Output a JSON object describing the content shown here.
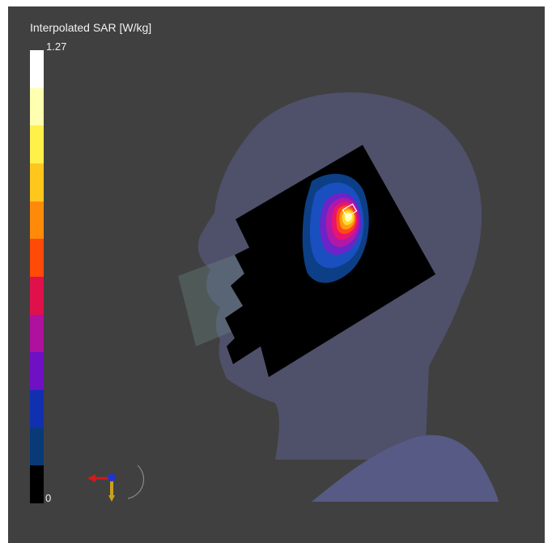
{
  "legend": {
    "title": "Interpolated SAR [W/kg]",
    "max_label": "1.27",
    "min_label": "0",
    "colors": [
      "#ffffff",
      "#ffffb0",
      "#fff04a",
      "#ffc61c",
      "#ff8a0a",
      "#ff4a08",
      "#e0104a",
      "#b0109e",
      "#7010c4",
      "#1030b0",
      "#083a78",
      "#000000"
    ]
  },
  "scene": {
    "head_color": "#525472",
    "shoulder_color": "#575a84",
    "grid_color": "#000000",
    "sar_colors": [
      "#0c3f86",
      "#1a4fc0",
      "#6a24c8",
      "#b018a8",
      "#e81470",
      "#ff4a14",
      "#ff9a10",
      "#ffd830",
      "#ffffb0"
    ],
    "axes": {
      "x_color": "#d11a1a",
      "y_color": "#c9a21a",
      "z_color": "#2233cc"
    }
  }
}
